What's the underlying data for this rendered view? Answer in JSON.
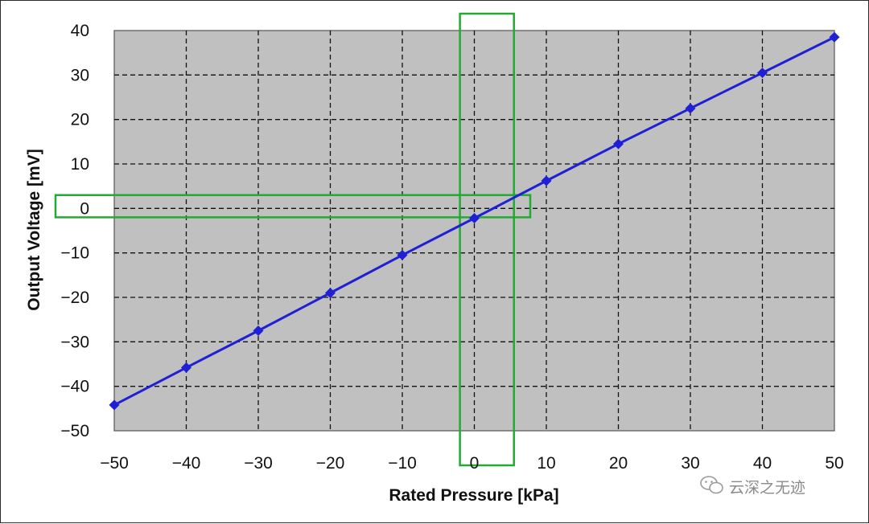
{
  "chart_data": {
    "type": "line",
    "title": "",
    "xlabel": "Rated Pressure [kPa]",
    "ylabel": "Output Voltage [mV]",
    "xlim": [
      -50,
      50
    ],
    "ylim": [
      -50,
      40
    ],
    "x_ticks": [
      -50,
      -40,
      -30,
      -20,
      -10,
      0,
      10,
      20,
      30,
      40,
      50
    ],
    "y_ticks": [
      -50,
      -40,
      -30,
      -20,
      -10,
      0,
      10,
      20,
      30,
      40
    ],
    "x_tick_labels": [
      "−50",
      "−40",
      "−30",
      "−20",
      "−10",
      "0",
      "10",
      "20",
      "30",
      "40",
      "50"
    ],
    "y_tick_labels": [
      "−50",
      "−40",
      "−30",
      "−20",
      "−10",
      "0",
      "10",
      "20",
      "30",
      "40"
    ],
    "grid": true,
    "grid_style": "dashed",
    "plot_background": "#c0c0c0",
    "series": [
      {
        "color": "#1f1fd6",
        "marker": "diamond",
        "x": [
          -50,
          -40,
          -30,
          -20,
          -10,
          0,
          10,
          20,
          30,
          40,
          50
        ],
        "y": [
          -44.2,
          -35.8,
          -27.5,
          -19.0,
          -10.5,
          -2.2,
          6.2,
          14.5,
          22.5,
          30.5,
          38.5
        ]
      }
    ],
    "highlights": [
      {
        "type": "vertical-band",
        "x_from": -2,
        "x_to": 5.5,
        "color": "#22aa33"
      },
      {
        "type": "horizontal-band",
        "y_from": -2,
        "y_to": 3,
        "color": "#22aa33"
      }
    ]
  },
  "watermark": {
    "text": "云深之无迹",
    "icon": "wechat-icon"
  }
}
